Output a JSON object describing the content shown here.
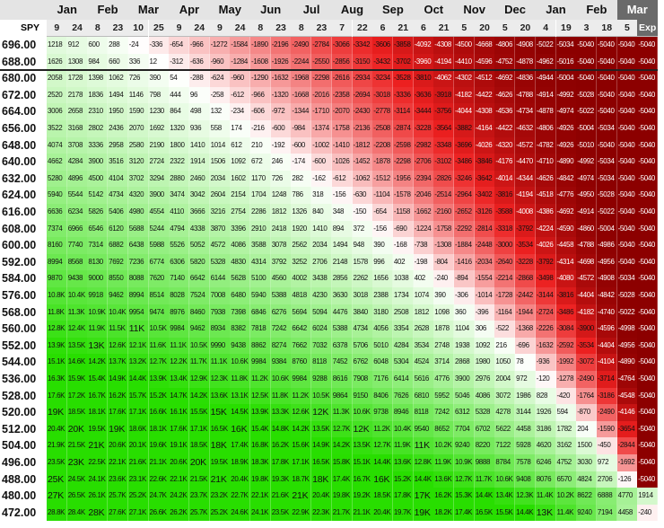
{
  "table": {
    "months": [
      "Jan",
      "Feb",
      "Mar",
      "Apr",
      "May",
      "Jun",
      "Jul",
      "Aug",
      "Sep",
      "Oct",
      "Nov",
      "Dec",
      "Jan",
      "Feb",
      "Mar"
    ],
    "corner": "SPY",
    "days": [
      "9",
      "24",
      "8",
      "23",
      "10",
      "25",
      "9",
      "24",
      "9",
      "24",
      "8",
      "23",
      "8",
      "23",
      "7",
      "22",
      "6",
      "21",
      "6",
      "21",
      "5",
      "20",
      "5",
      "20",
      "4",
      "19",
      "3",
      "18",
      "5",
      "Exp"
    ],
    "rows": [
      {
        "strike": "696.00",
        "values": [
          1218,
          912,
          600,
          288,
          -24,
          -336,
          -654,
          -966,
          -1272,
          -1584,
          -1890,
          -2196,
          -2490,
          -2784,
          -3066,
          -3342,
          -3606,
          -3858,
          -4092,
          -4308,
          -4500,
          -4668,
          -4806,
          -4908,
          -5022,
          -5034,
          -5040,
          -5040,
          -5040,
          -5040
        ]
      },
      {
        "strike": "688.00",
        "values": [
          1626,
          1308,
          984,
          660,
          336,
          12,
          -312,
          -636,
          -960,
          -1284,
          -1608,
          -1926,
          -2244,
          -2550,
          -2856,
          -3150,
          -3432,
          -3702,
          -3960,
          -4194,
          -4410,
          -4596,
          -4752,
          -4878,
          -4962,
          -5016,
          -5040,
          -5040,
          -5040,
          -5040
        ]
      },
      {
        "strike": "680.00",
        "values": [
          2058,
          1728,
          1398,
          1062,
          726,
          390,
          54,
          -288,
          -624,
          -960,
          -1290,
          -1632,
          -1968,
          -2298,
          -2616,
          -2934,
          -3234,
          -3528,
          -3810,
          -4062,
          -4302,
          -4512,
          -4692,
          -4836,
          -4944,
          -5004,
          -5040,
          -5040,
          -5040,
          -5040
        ]
      },
      {
        "strike": "672.00",
        "values": [
          2520,
          2178,
          1836,
          1494,
          1146,
          798,
          444,
          96,
          -258,
          -612,
          -966,
          -1320,
          -1668,
          -2016,
          -2358,
          -2694,
          -3018,
          -3336,
          -3636,
          -3918,
          -4182,
          -4422,
          -4626,
          -4788,
          -4914,
          -4992,
          -5028,
          -5040,
          -5040,
          -5040
        ]
      },
      {
        "strike": "664.00",
        "values": [
          3006,
          2658,
          2310,
          1950,
          1590,
          1230,
          864,
          498,
          132,
          -234,
          -606,
          -972,
          -1344,
          -1710,
          -2070,
          -2430,
          -2778,
          -3114,
          -3444,
          -3756,
          -4044,
          -4308,
          -4536,
          -4734,
          -4878,
          -4974,
          -5022,
          -5040,
          -5040,
          -5040
        ]
      },
      {
        "strike": "656.00",
        "values": [
          3522,
          3168,
          2802,
          2436,
          2070,
          1692,
          1320,
          936,
          558,
          174,
          -216,
          -600,
          -984,
          -1374,
          -1758,
          -2136,
          -2508,
          -2874,
          -3228,
          -3564,
          -3882,
          -4164,
          -4422,
          -4632,
          -4806,
          -4926,
          -5004,
          -5034,
          -5040,
          -5040
        ]
      },
      {
        "strike": "648.00",
        "values": [
          4074,
          3708,
          3336,
          2958,
          2580,
          2190,
          1800,
          1410,
          1014,
          612,
          210,
          -192,
          -600,
          -1002,
          -1410,
          -1812,
          -2208,
          -2598,
          -2982,
          -3348,
          -3696,
          -4026,
          -4320,
          -4572,
          -4782,
          -4926,
          -5010,
          -5040,
          -5040,
          -5040
        ]
      },
      {
        "strike": "640.00",
        "values": [
          4662,
          4284,
          3900,
          3516,
          3120,
          2724,
          2322,
          1914,
          1506,
          1092,
          672,
          246,
          -174,
          -600,
          -1026,
          -1452,
          -1878,
          -2298,
          -2706,
          -3102,
          -3486,
          -3846,
          -4176,
          -4470,
          -4710,
          -4890,
          -4992,
          -5034,
          -5040,
          -5040
        ]
      },
      {
        "strike": "632.00",
        "values": [
          5280,
          4896,
          4500,
          4104,
          3702,
          3294,
          2880,
          2460,
          2034,
          1602,
          1170,
          726,
          282,
          -162,
          -612,
          -1062,
          -1512,
          -1956,
          -2394,
          -2826,
          -3246,
          -3642,
          -4014,
          -4344,
          -4626,
          -4842,
          -4974,
          -5034,
          -5040,
          -5040
        ]
      },
      {
        "strike": "624.00",
        "values": [
          5940,
          5544,
          5142,
          4734,
          4320,
          3900,
          3474,
          3042,
          2604,
          2154,
          1704,
          1248,
          786,
          318,
          -156,
          -630,
          -1104,
          -1578,
          -2046,
          -2514,
          -2964,
          -3402,
          -3816,
          -4194,
          -4518,
          -4776,
          -4950,
          -5028,
          -5040,
          -5040
        ]
      },
      {
        "strike": "616.00",
        "values": [
          6636,
          6234,
          5826,
          5406,
          4980,
          4554,
          4110,
          3666,
          3216,
          2754,
          2286,
          1812,
          1326,
          840,
          348,
          -150,
          -654,
          -1158,
          -1662,
          -2160,
          -2652,
          -3126,
          -3588,
          -4008,
          -4386,
          -4692,
          -4914,
          -5022,
          -5040,
          -5040
        ]
      },
      {
        "strike": "608.00",
        "values": [
          7374,
          6966,
          6546,
          6120,
          5688,
          5244,
          4794,
          4338,
          3870,
          3396,
          2910,
          2418,
          1920,
          1410,
          894,
          372,
          -156,
          -690,
          -1224,
          -1758,
          -2292,
          -2814,
          -3318,
          -3792,
          -4224,
          -4590,
          -4860,
          -5004,
          -5040,
          -5040
        ]
      },
      {
        "strike": "600.00",
        "values": [
          8160,
          7740,
          7314,
          6882,
          6438,
          5988,
          5526,
          5052,
          4572,
          4086,
          3588,
          3078,
          2562,
          2034,
          1494,
          948,
          390,
          -168,
          -738,
          -1308,
          -1884,
          -2448,
          -3000,
          -3534,
          -4026,
          -4458,
          -4788,
          -4986,
          -5040,
          -5040
        ]
      },
      {
        "strike": "592.00",
        "values": [
          8994,
          8568,
          8130,
          7692,
          7236,
          6774,
          6306,
          5820,
          5328,
          4830,
          4314,
          3792,
          3252,
          2706,
          2148,
          1578,
          996,
          402,
          -198,
          -804,
          -1416,
          -2034,
          -2640,
          -3228,
          -3792,
          -4314,
          -4698,
          -4956,
          -5040,
          -5040
        ]
      },
      {
        "strike": "584.00",
        "values": [
          9870,
          9438,
          9000,
          8550,
          8088,
          7620,
          7140,
          6642,
          6144,
          5628,
          5100,
          4560,
          4002,
          3438,
          2856,
          2262,
          1656,
          1038,
          402,
          -240,
          -894,
          -1554,
          -2214,
          -2868,
          -3498,
          -4080,
          -4572,
          -4908,
          -5034,
          -5040
        ]
      },
      {
        "strike": "576.00",
        "values": [
          "10.8K",
          "10.4K",
          9918,
          9462,
          8994,
          8514,
          8028,
          7524,
          7008,
          6480,
          5940,
          5388,
          4818,
          4230,
          3630,
          3018,
          2388,
          1734,
          1074,
          390,
          -306,
          -1014,
          -1728,
          -2442,
          -3144,
          -3816,
          -4404,
          -4842,
          -5028,
          -5040
        ]
      },
      {
        "strike": "568.00",
        "values": [
          "11.8K",
          "11.3K",
          "10.9K",
          "10.4K",
          9954,
          9474,
          8976,
          8460,
          7938,
          7398,
          6846,
          6276,
          5694,
          5094,
          4476,
          3840,
          3180,
          2508,
          1812,
          1098,
          360,
          -396,
          -1164,
          -1944,
          -2724,
          -3486,
          -4182,
          -4740,
          -5022,
          -5040
        ]
      },
      {
        "strike": "560.00",
        "values": [
          "12.8K",
          "12.4K",
          "11.9K",
          "11.5K",
          "11K",
          "10.5K",
          9984,
          9462,
          8934,
          8382,
          7818,
          7242,
          6642,
          6024,
          5388,
          4734,
          4056,
          3354,
          2628,
          1878,
          1104,
          306,
          -522,
          -1368,
          -2226,
          -3084,
          -3900,
          -4596,
          -4998,
          -5040
        ]
      },
      {
        "strike": "552.00",
        "values": [
          "13.9K",
          "13.5K",
          "13K",
          "12.6K",
          "12.1K",
          "11.6K",
          "11.1K",
          "10.5K",
          9990,
          9438,
          8862,
          8274,
          7662,
          7032,
          6378,
          5706,
          5010,
          4284,
          3534,
          2748,
          1938,
          1092,
          216,
          -696,
          -1632,
          -2592,
          -3534,
          -4404,
          -4956,
          -5040
        ]
      },
      {
        "strike": "544.00",
        "values": [
          "15.1K",
          "14.6K",
          "14.2K",
          "13.7K",
          "13.2K",
          "12.7K",
          "12.2K",
          "11.7K",
          "11.1K",
          "10.6K",
          9984,
          9384,
          8760,
          8118,
          7452,
          6762,
          6048,
          5304,
          4524,
          3714,
          2868,
          1980,
          1050,
          78,
          -936,
          -1992,
          -3072,
          -4104,
          -4890,
          -5040
        ]
      },
      {
        "strike": "536.00",
        "values": [
          "16.3K",
          "15.9K",
          "15.4K",
          "14.9K",
          "14.4K",
          "13.9K",
          "13.4K",
          "12.9K",
          "12.3K",
          "11.8K",
          "11.2K",
          "10.6K",
          9984,
          9288,
          8616,
          7908,
          7176,
          6414,
          5616,
          4776,
          3900,
          2976,
          2004,
          972,
          -120,
          -1278,
          -2490,
          -3714,
          -4764,
          -5040
        ]
      },
      {
        "strike": "528.00",
        "values": [
          "17.6K",
          "17.2K",
          "16.7K",
          "16.2K",
          "15.7K",
          "15.2K",
          "14.7K",
          "14.2K",
          "13.6K",
          "13.1K",
          "12.5K",
          "11.8K",
          "11.2K",
          "10.5K",
          9864,
          9150,
          8406,
          7626,
          6810,
          5952,
          5046,
          4086,
          3072,
          1986,
          828,
          -420,
          -1764,
          -3186,
          -4548,
          -5040
        ]
      },
      {
        "strike": "520.00",
        "values": [
          "19K",
          "18.5K",
          "18.1K",
          "17.6K",
          "17.1K",
          "16.6K",
          "16.1K",
          "15.5K",
          "15K",
          "14.5K",
          "13.9K",
          "13.3K",
          "12.6K",
          "12K",
          "11.3K",
          "10.6K",
          9738,
          8946,
          8118,
          7242,
          6312,
          5328,
          4278,
          3144,
          1926,
          594,
          -870,
          -2490,
          -4146,
          -5040
        ]
      },
      {
        "strike": "512.00",
        "values": [
          "20.4K",
          "20K",
          "19.5K",
          "19K",
          "18.6K",
          "18.1K",
          "17.6K",
          "17.1K",
          "16.5K",
          "16K",
          "15.4K",
          "14.8K",
          "14.2K",
          "13.5K",
          "12.7K",
          "12K",
          "11.2K",
          "10.4K",
          9540,
          8652,
          7704,
          6702,
          5622,
          4458,
          3186,
          1782,
          204,
          -1590,
          -3654,
          -5040
        ]
      },
      {
        "strike": "504.00",
        "values": [
          "21.9K",
          "21.5K",
          "21K",
          "20.6K",
          "20.1K",
          "19.6K",
          "19.1K",
          "18.5K",
          "18K",
          "17.4K",
          "16.8K",
          "16.2K",
          "15.6K",
          "14.9K",
          "14.2K",
          "13.5K",
          "12.7K",
          "11.9K",
          "11K",
          "10.2K",
          9240,
          8220,
          7122,
          5928,
          4620,
          3162,
          1500,
          -450,
          -2844,
          -5040
        ]
      },
      {
        "strike": "496.00",
        "values": [
          "23.5K",
          "23K",
          "22.5K",
          "22.1K",
          "21.6K",
          "21.1K",
          "20.6K",
          "20K",
          "19.5K",
          "18.9K",
          "18.3K",
          "17.8K",
          "17.1K",
          "16.5K",
          "15.8K",
          "15.1K",
          "14.4K",
          "13.6K",
          "12.8K",
          "11.9K",
          "10.9K",
          9888,
          8784,
          7578,
          6246,
          4752,
          3030,
          972,
          -1692,
          -5040
        ]
      },
      {
        "strike": "488.00",
        "values": [
          "25K",
          "24.5K",
          "24.1K",
          "23.6K",
          "23.1K",
          "22.6K",
          "22.1K",
          "21.5K",
          "21K",
          "20.4K",
          "19.8K",
          "19.3K",
          "18.7K",
          "18K",
          "17.4K",
          "16.7K",
          "16K",
          "15.2K",
          "14.4K",
          "13.6K",
          "12.7K",
          "11.7K",
          "10.6K",
          9408,
          8076,
          6570,
          4824,
          2706,
          -126,
          -5040
        ]
      },
      {
        "strike": "480.00",
        "values": [
          "27K",
          "26.5K",
          "26.1K",
          "25.7K",
          "25.2K",
          "24.7K",
          "24.2K",
          "23.7K",
          "23.2K",
          "22.7K",
          "22.1K",
          "21.6K",
          "21K",
          "20.4K",
          "19.8K",
          "19.2K",
          "18.5K",
          "17.8K",
          "17K",
          "16.2K",
          "15.3K",
          "14.4K",
          "13.4K",
          "12.3K",
          "11.4K",
          "10.2K",
          8622,
          6888,
          4770,
          1914
        ]
      },
      {
        "strike": "472.00",
        "values": [
          "28.8K",
          "28.4K",
          "28K",
          "27.6K",
          "27.1K",
          "26.6K",
          "26.2K",
          "25.7K",
          "25.2K",
          "24.6K",
          "24.1K",
          "23.5K",
          "22.9K",
          "22.3K",
          "21.7K",
          "21.1K",
          "20.4K",
          "19.7K",
          "19K",
          "18.2K",
          "17.4K",
          "16.5K",
          "15.5K",
          "14.4K",
          "13K",
          "11.4K",
          9240,
          7194,
          4458,
          -240
        ]
      }
    ]
  }
}
